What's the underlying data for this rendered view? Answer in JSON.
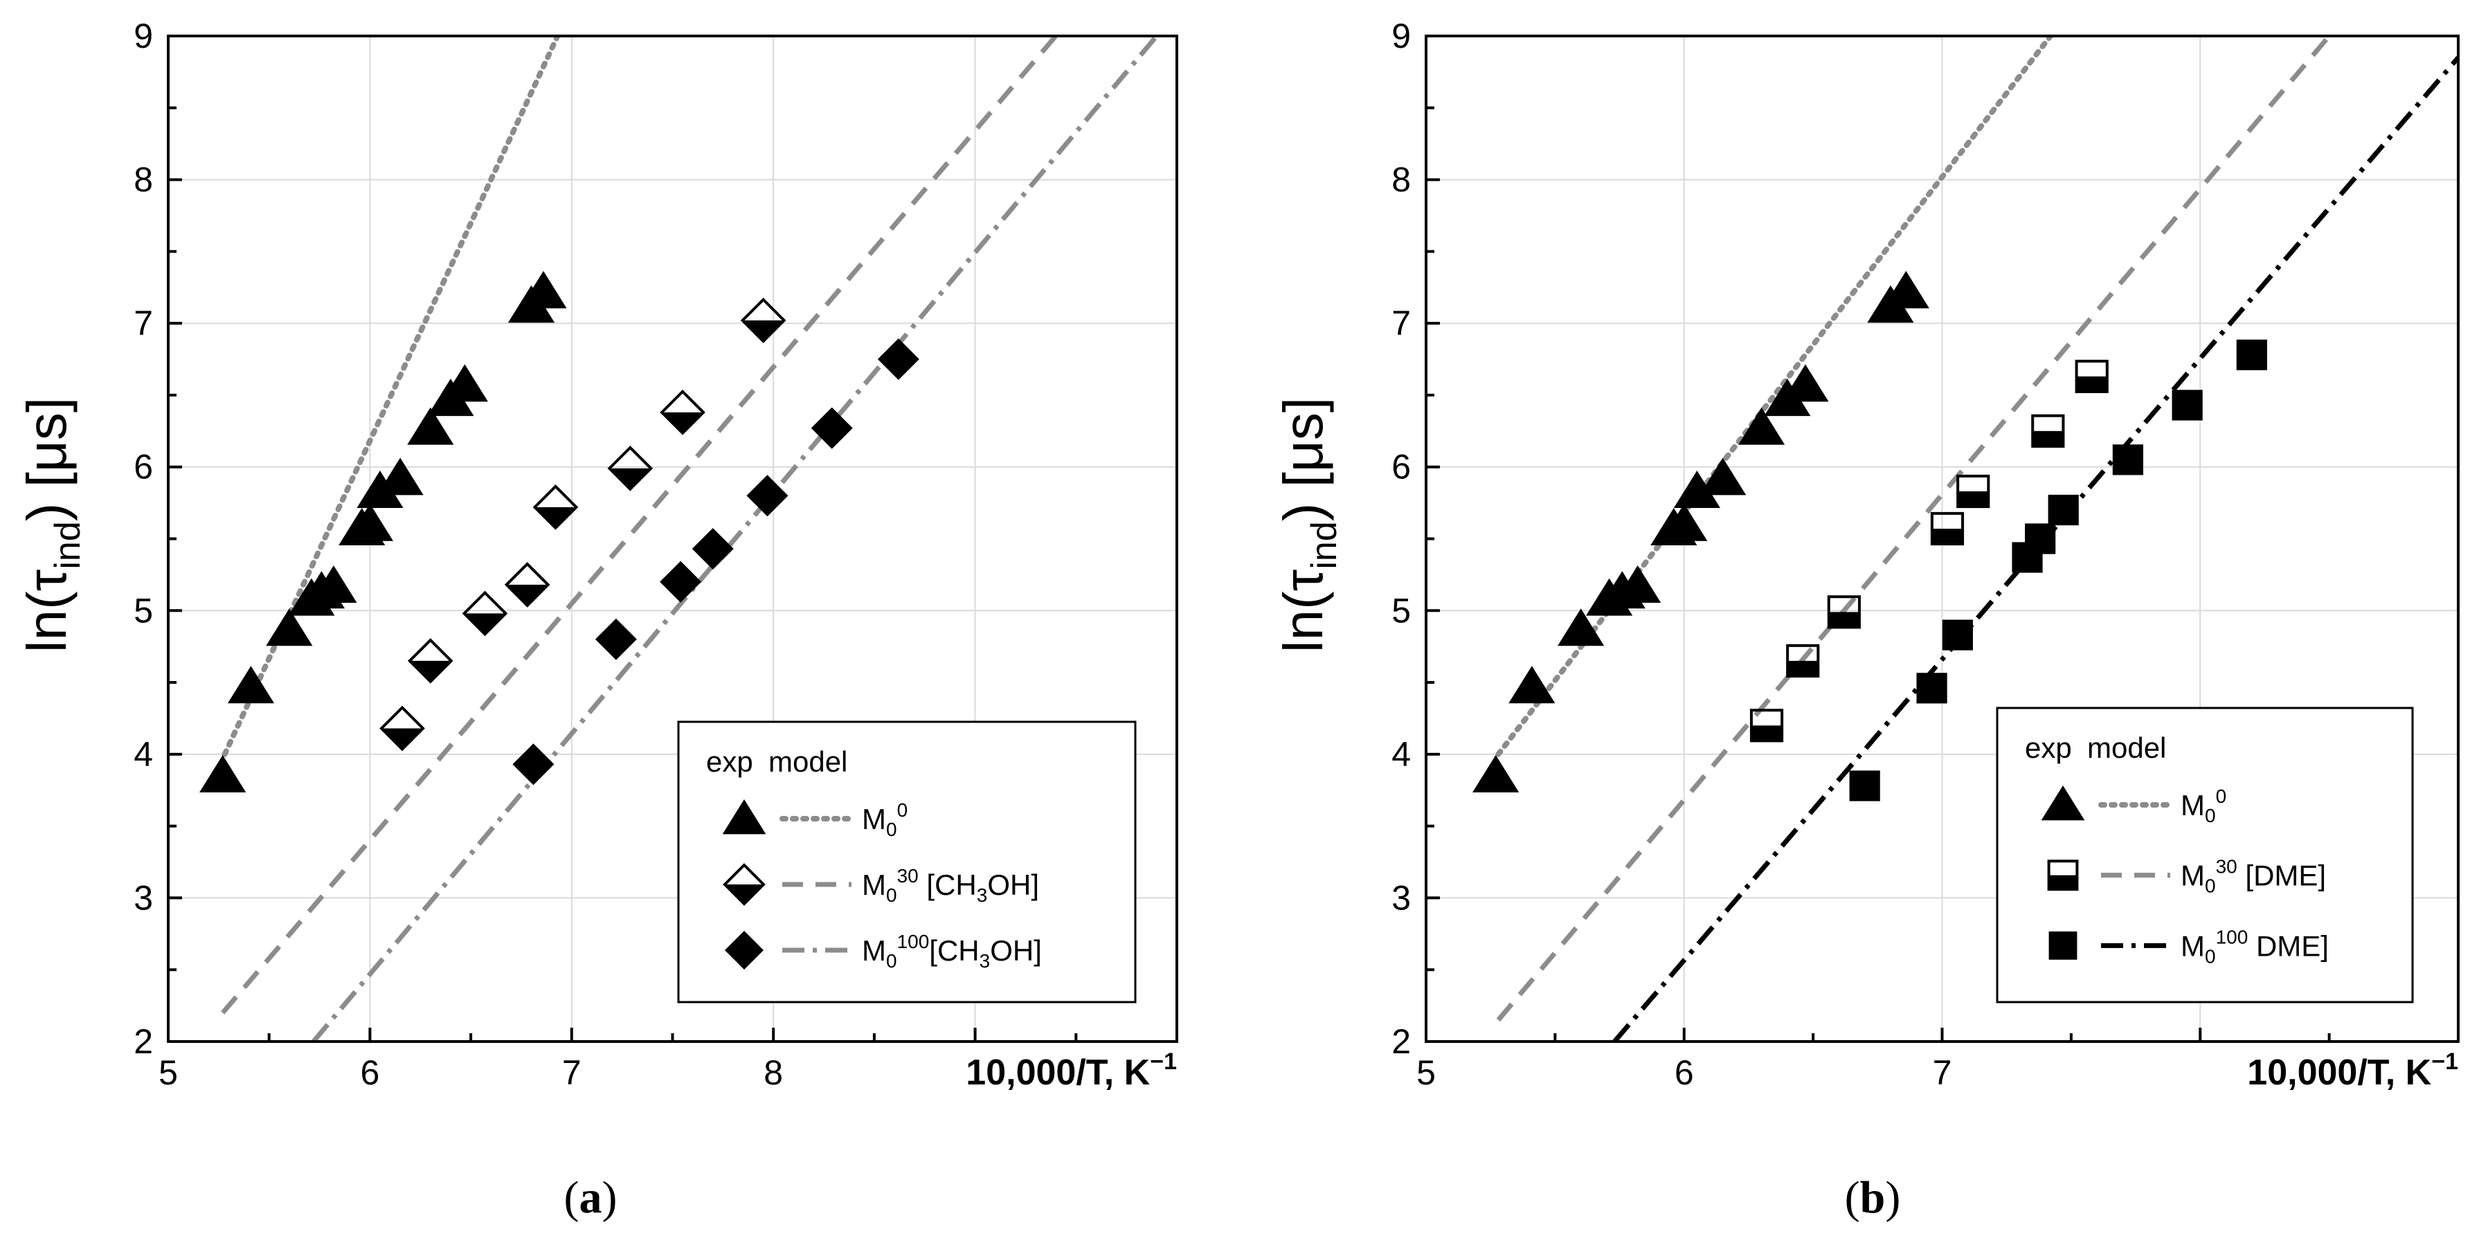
{
  "chart_data": [
    {
      "type": "scatter",
      "panel_label": "(a)",
      "caption_letter": "a",
      "xlabel": "10,000/T, K",
      "xlabel_sup": "−1",
      "ylabel": "ln(τ",
      "ylabel_sub": "ind",
      "ylabel_end": ") [μs]",
      "xlim": [
        5,
        10.0
      ],
      "ylim": [
        2,
        9
      ],
      "x_ticks": [
        5,
        6,
        7,
        8
      ],
      "y_ticks": [
        2,
        3,
        4,
        5,
        6,
        7,
        8,
        9
      ],
      "legend": {
        "header_exp": "exp",
        "header_model": "model",
        "entries": [
          {
            "base": "M",
            "sub": "0",
            "sup": "0",
            "tail": ""
          },
          {
            "base": "M",
            "sub": "0",
            "sup": "30",
            "tail_pre": " [CH",
            "tail_sub": "3",
            "tail_post": "OH]"
          },
          {
            "base": "M",
            "sub": "0",
            "sup": "100",
            "tail_pre": "[CH",
            "tail_sub": "3",
            "tail_post": "OH]"
          }
        ]
      },
      "series": [
        {
          "name": "M0^0 exp",
          "marker": "triangle",
          "points": [
            [
              5.27,
              3.85
            ],
            [
              5.41,
              4.47
            ],
            [
              5.6,
              4.87
            ],
            [
              5.71,
              5.08
            ],
            [
              5.76,
              5.13
            ],
            [
              5.82,
              5.17
            ],
            [
              5.96,
              5.57
            ],
            [
              6.0,
              5.6
            ],
            [
              6.05,
              5.83
            ],
            [
              6.15,
              5.92
            ],
            [
              6.3,
              6.27
            ],
            [
              6.4,
              6.47
            ],
            [
              6.47,
              6.57
            ],
            [
              6.8,
              7.12
            ],
            [
              6.86,
              7.22
            ]
          ]
        },
        {
          "name": "M0^30 [CH3OH] exp",
          "marker": "half-diamond",
          "points": [
            [
              6.16,
              4.18
            ],
            [
              6.3,
              4.65
            ],
            [
              6.57,
              4.98
            ],
            [
              6.78,
              5.18
            ],
            [
              6.92,
              5.72
            ],
            [
              7.29,
              5.99
            ],
            [
              7.55,
              6.38
            ],
            [
              7.95,
              7.02
            ]
          ]
        },
        {
          "name": "M0^100 [CH3OH] exp",
          "marker": "diamond",
          "points": [
            [
              6.81,
              3.93
            ],
            [
              7.22,
              4.8
            ],
            [
              7.54,
              5.2
            ],
            [
              7.7,
              5.43
            ],
            [
              7.97,
              5.8
            ],
            [
              8.29,
              6.27
            ],
            [
              8.62,
              6.75
            ]
          ]
        }
      ],
      "model_lines": [
        {
          "name": "M0^0 model",
          "style": "dotted",
          "color": "#8c8c8c",
          "x": [
            5.28,
            6.93
          ],
          "y": [
            4.0,
            9.0
          ]
        },
        {
          "name": "M0^30 [CH3OH] model",
          "style": "dashed",
          "color": "#8c8c8c",
          "x": [
            5.27,
            9.4
          ],
          "y": [
            2.2,
            9.0
          ]
        },
        {
          "name": "M0^100 [CH3OH] model",
          "style": "dash-dot",
          "color": "#8c8c8c",
          "x": [
            5.72,
            9.9
          ],
          "y": [
            2.0,
            9.0
          ]
        }
      ]
    },
    {
      "type": "scatter",
      "panel_label": "(b)",
      "caption_letter": "b",
      "xlabel": "10,000/T, K",
      "xlabel_sup": "−1",
      "ylabel": "ln(τ",
      "ylabel_sub": "ind",
      "ylabel_end": ") [μs]",
      "xlim": [
        5,
        9.0
      ],
      "ylim": [
        2,
        9
      ],
      "x_ticks": [
        5,
        6,
        7
      ],
      "y_ticks": [
        2,
        3,
        4,
        5,
        6,
        7,
        8,
        9
      ],
      "legend": {
        "header_exp": "exp",
        "header_model": "model",
        "entries": [
          {
            "base": "M",
            "sub": "0",
            "sup": "0",
            "tail": ""
          },
          {
            "base": "M",
            "sub": "0",
            "sup": "30",
            "tail": " [DME]"
          },
          {
            "base": "M",
            "sub": "0",
            "sup": "100",
            "tail": " DME]"
          }
        ]
      },
      "series": [
        {
          "name": "M0^0 exp",
          "marker": "triangle",
          "points": [
            [
              5.27,
              3.85
            ],
            [
              5.41,
              4.47
            ],
            [
              5.6,
              4.87
            ],
            [
              5.71,
              5.08
            ],
            [
              5.76,
              5.13
            ],
            [
              5.82,
              5.17
            ],
            [
              5.96,
              5.57
            ],
            [
              6.0,
              5.6
            ],
            [
              6.05,
              5.83
            ],
            [
              6.15,
              5.92
            ],
            [
              6.3,
              6.27
            ],
            [
              6.4,
              6.47
            ],
            [
              6.47,
              6.57
            ],
            [
              6.8,
              7.12
            ],
            [
              6.86,
              7.22
            ]
          ]
        },
        {
          "name": "M0^30 [DME] exp",
          "marker": "half-square",
          "points": [
            [
              6.32,
              4.2
            ],
            [
              6.46,
              4.65
            ],
            [
              6.62,
              4.99
            ],
            [
              7.02,
              5.57
            ],
            [
              7.12,
              5.83
            ],
            [
              7.41,
              6.25
            ],
            [
              7.58,
              6.63
            ]
          ]
        },
        {
          "name": "M0^100 DME] exp",
          "marker": "square",
          "points": [
            [
              6.7,
              3.78
            ],
            [
              6.96,
              4.46
            ],
            [
              7.06,
              4.83
            ],
            [
              7.33,
              5.37
            ],
            [
              7.38,
              5.5
            ],
            [
              7.47,
              5.7
            ],
            [
              7.72,
              6.05
            ],
            [
              7.95,
              6.43
            ],
            [
              8.2,
              6.78
            ]
          ]
        }
      ],
      "model_lines": [
        {
          "name": "M0^0 model",
          "style": "dotted",
          "color": "#8c8c8c",
          "x": [
            5.28,
            7.42
          ],
          "y": [
            4.0,
            9.0
          ]
        },
        {
          "name": "M0^30 [DME] model",
          "style": "dashed",
          "color": "#8c8c8c",
          "x": [
            5.28,
            8.5
          ],
          "y": [
            2.15,
            9.0
          ]
        },
        {
          "name": "M0^100 DME] model",
          "style": "dash-dot",
          "color": "#000000",
          "x": [
            5.73,
            9.0
          ],
          "y": [
            2.0,
            8.85
          ]
        }
      ]
    }
  ]
}
